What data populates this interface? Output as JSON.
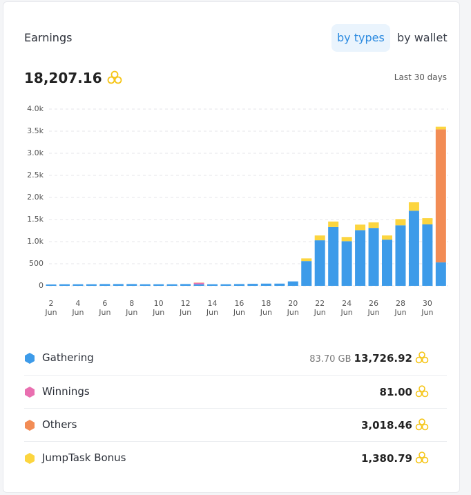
{
  "header": {
    "title": "Earnings",
    "tabs": [
      "by types",
      "by wallet"
    ],
    "total": "18,207.16",
    "period": "Last 30 days"
  },
  "chart_data": {
    "type": "bar",
    "stacked": true,
    "categories": [
      "2 Jun",
      null,
      "4 Jun",
      null,
      "6 Jun",
      null,
      "8 Jun",
      null,
      "10 Jun",
      null,
      "12 Jun",
      null,
      "14 Jun",
      null,
      "16 Jun",
      null,
      "18 Jun",
      null,
      "20 Jun",
      null,
      "22 Jun",
      null,
      "24 Jun",
      null,
      "26 Jun",
      null,
      "28 Jun",
      null,
      "30 Jun",
      null
    ],
    "series": [
      {
        "name": "Gathering",
        "color": "#3d9be9",
        "values": [
          30,
          35,
          35,
          35,
          40,
          40,
          40,
          35,
          35,
          35,
          40,
          35,
          35,
          35,
          40,
          45,
          50,
          50,
          100,
          560,
          1030,
          1330,
          1010,
          1260,
          1310,
          1045,
          1370,
          1700,
          1390,
          530
        ]
      },
      {
        "name": "Winnings",
        "color": "#e96fb0",
        "values": [
          0,
          0,
          0,
          0,
          0,
          0,
          0,
          0,
          0,
          0,
          0,
          30,
          0,
          0,
          0,
          0,
          0,
          0,
          0,
          0,
          0,
          0,
          0,
          0,
          0,
          0,
          0,
          0,
          0,
          0
        ]
      },
      {
        "name": "Others",
        "color": "#f28c55",
        "values": [
          0,
          0,
          0,
          0,
          0,
          0,
          0,
          0,
          0,
          0,
          0,
          8,
          0,
          0,
          0,
          0,
          0,
          0,
          0,
          0,
          0,
          0,
          0,
          0,
          0,
          0,
          0,
          0,
          0,
          3010
        ]
      },
      {
        "name": "JumpTask Bonus",
        "color": "#fcd53f",
        "values": [
          0,
          0,
          0,
          0,
          0,
          0,
          0,
          0,
          0,
          0,
          0,
          0,
          0,
          0,
          0,
          0,
          0,
          0,
          0,
          60,
          110,
          125,
          95,
          125,
          125,
          95,
          140,
          190,
          140,
          60
        ]
      }
    ],
    "ylim": [
      0,
      4000
    ],
    "yticks": [
      0,
      500,
      {
        "value": 1000,
        "label": "1.0k"
      },
      {
        "value": 1500,
        "label": "1.5k"
      },
      {
        "value": 2000,
        "label": "2.0k"
      },
      {
        "value": 2500,
        "label": "2.5k"
      },
      {
        "value": 3000,
        "label": "3.0k"
      },
      {
        "value": 3500,
        "label": "3.5k"
      },
      {
        "value": 4000,
        "label": "4.0k"
      }
    ],
    "grid": true
  },
  "summary": {
    "gathering_size": "83.70 GB",
    "totals": [
      "13,726.92",
      "81.00",
      "3,018.46",
      "1,380.79"
    ]
  }
}
